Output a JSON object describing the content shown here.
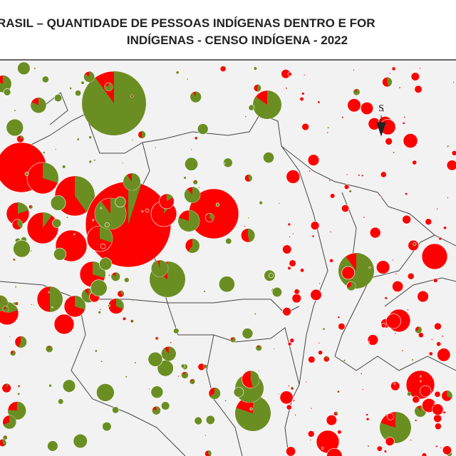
{
  "header": {
    "title_line1": "RASIL – QUANTIDADE DE PESSOAS INDÍGENAS DENTRO E FOR",
    "title_line2": "INDÍGENAS - CENSO INDÍGENA - 2022"
  },
  "compass": {
    "label": "S"
  }
}
